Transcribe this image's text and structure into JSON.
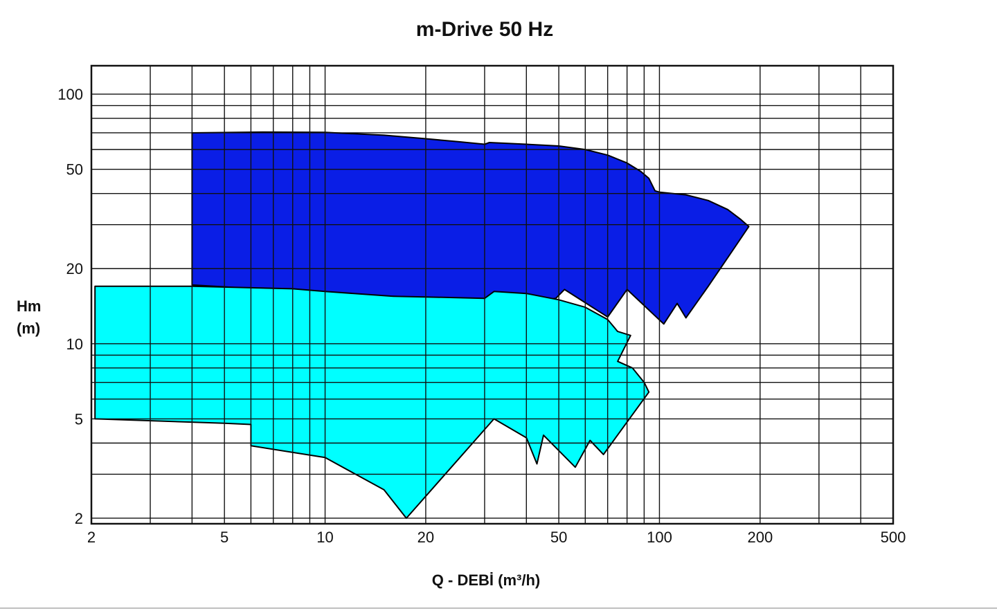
{
  "chart_data": {
    "type": "area",
    "title": "m-Drive 50 Hz",
    "ylabel_line1": "Hm",
    "ylabel_line2": "(m)",
    "xlabel": "Q - DEBİ (m³/h)",
    "x_scale": "log",
    "y_scale": "log",
    "xlim": [
      2,
      500
    ],
    "ylim": [
      1.9,
      130
    ],
    "x_ticks": [
      2,
      5,
      10,
      20,
      50,
      100,
      200,
      500
    ],
    "y_ticks": [
      2,
      5,
      10,
      20,
      50,
      100
    ],
    "grid": true,
    "series": [
      {
        "color": "#0a1ee6",
        "outline": "#000000",
        "points": [
          [
            4.0,
            17.2
          ],
          [
            4.0,
            70.0
          ],
          [
            6.5,
            70.5
          ],
          [
            10,
            70.3
          ],
          [
            15,
            68.5
          ],
          [
            20,
            66.3
          ],
          [
            25,
            64.5
          ],
          [
            30,
            63.0
          ],
          [
            31,
            64.0
          ],
          [
            40,
            63.0
          ],
          [
            50,
            62.0
          ],
          [
            60,
            60.0
          ],
          [
            70,
            57.0
          ],
          [
            80,
            53.0
          ],
          [
            88,
            49.0
          ],
          [
            93,
            46.0
          ],
          [
            97,
            41.0
          ],
          [
            100,
            40.5
          ],
          [
            120,
            39.5
          ],
          [
            140,
            37.5
          ],
          [
            160,
            34.5
          ],
          [
            175,
            31.5
          ],
          [
            185,
            29.5
          ],
          [
            165,
            23.5
          ],
          [
            140,
            17.0
          ],
          [
            120,
            12.7
          ],
          [
            113,
            14.5
          ],
          [
            103,
            12.0
          ],
          [
            80,
            16.5
          ],
          [
            70,
            12.8
          ],
          [
            52,
            16.5
          ],
          [
            49,
            15.2
          ],
          [
            45,
            15.0
          ],
          [
            30,
            15.0
          ],
          [
            16,
            15.5
          ],
          [
            16,
            15.1
          ],
          [
            10,
            16.0
          ],
          [
            4.0,
            17.2
          ]
        ]
      },
      {
        "color": "#00ffff",
        "outline": "#000000",
        "points": [
          [
            2.05,
            17.0
          ],
          [
            4.0,
            17.0
          ],
          [
            8,
            16.6
          ],
          [
            10,
            16.2
          ],
          [
            16,
            15.5
          ],
          [
            20,
            15.4
          ],
          [
            30,
            15.2
          ],
          [
            32,
            16.2
          ],
          [
            40,
            15.9
          ],
          [
            50,
            15.0
          ],
          [
            60,
            14.0
          ],
          [
            70,
            12.5
          ],
          [
            75,
            11.2
          ],
          [
            82,
            10.8
          ],
          [
            75,
            8.5
          ],
          [
            83,
            8.0
          ],
          [
            90,
            7.0
          ],
          [
            93,
            6.4
          ],
          [
            68,
            3.6
          ],
          [
            62,
            4.1
          ],
          [
            56,
            3.2
          ],
          [
            45,
            4.3
          ],
          [
            43,
            3.3
          ],
          [
            40,
            4.2
          ],
          [
            32,
            5.0
          ],
          [
            17.5,
            2.0
          ],
          [
            15,
            2.6
          ],
          [
            10,
            3.5
          ],
          [
            6,
            3.9
          ],
          [
            6,
            4.75
          ],
          [
            5,
            4.8
          ],
          [
            2.05,
            5.0
          ],
          [
            2.05,
            17.0
          ]
        ]
      }
    ]
  }
}
